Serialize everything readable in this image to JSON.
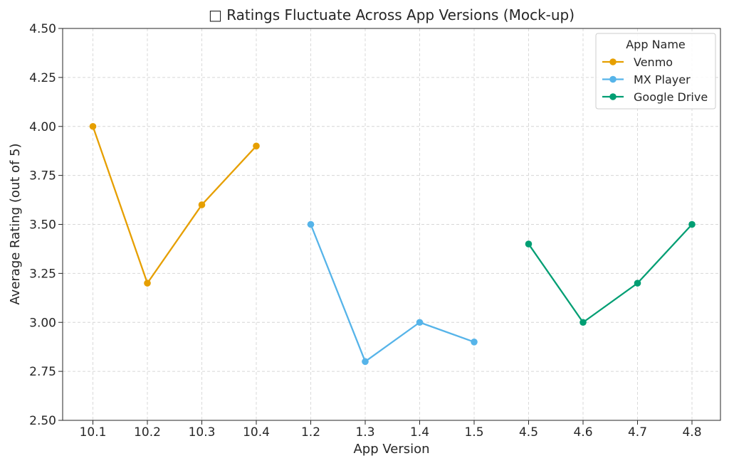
{
  "chart_data": {
    "type": "line",
    "title": "□ Ratings Fluctuate Across App Versions (Mock-up)",
    "xlabel": "App Version",
    "ylabel": "Average Rating (out of 5)",
    "categories": [
      "10.1",
      "10.2",
      "10.3",
      "10.4",
      "1.2",
      "1.3",
      "1.4",
      "1.5",
      "4.5",
      "4.6",
      "4.7",
      "4.8"
    ],
    "ylim": [
      2.5,
      4.5
    ],
    "yticks": [
      "2.50",
      "2.75",
      "3.00",
      "3.25",
      "3.50",
      "3.75",
      "4.00",
      "4.25",
      "4.50"
    ],
    "grid": true,
    "legend": {
      "title": "App Name",
      "placement": "top-right"
    },
    "series": [
      {
        "name": "Venmo",
        "color": "#E69F00",
        "points": [
          {
            "x": "10.1",
            "y": 4.0
          },
          {
            "x": "10.2",
            "y": 3.2
          },
          {
            "x": "10.3",
            "y": 3.6
          },
          {
            "x": "10.4",
            "y": 3.9
          }
        ]
      },
      {
        "name": "MX Player",
        "color": "#56B4E9",
        "points": [
          {
            "x": "1.2",
            "y": 3.5
          },
          {
            "x": "1.3",
            "y": 2.8
          },
          {
            "x": "1.4",
            "y": 3.0
          },
          {
            "x": "1.5",
            "y": 2.9
          }
        ]
      },
      {
        "name": "Google Drive",
        "color": "#009E73",
        "points": [
          {
            "x": "4.5",
            "y": 3.4
          },
          {
            "x": "4.6",
            "y": 3.0
          },
          {
            "x": "4.7",
            "y": 3.2
          },
          {
            "x": "4.8",
            "y": 3.5
          }
        ]
      }
    ]
  }
}
